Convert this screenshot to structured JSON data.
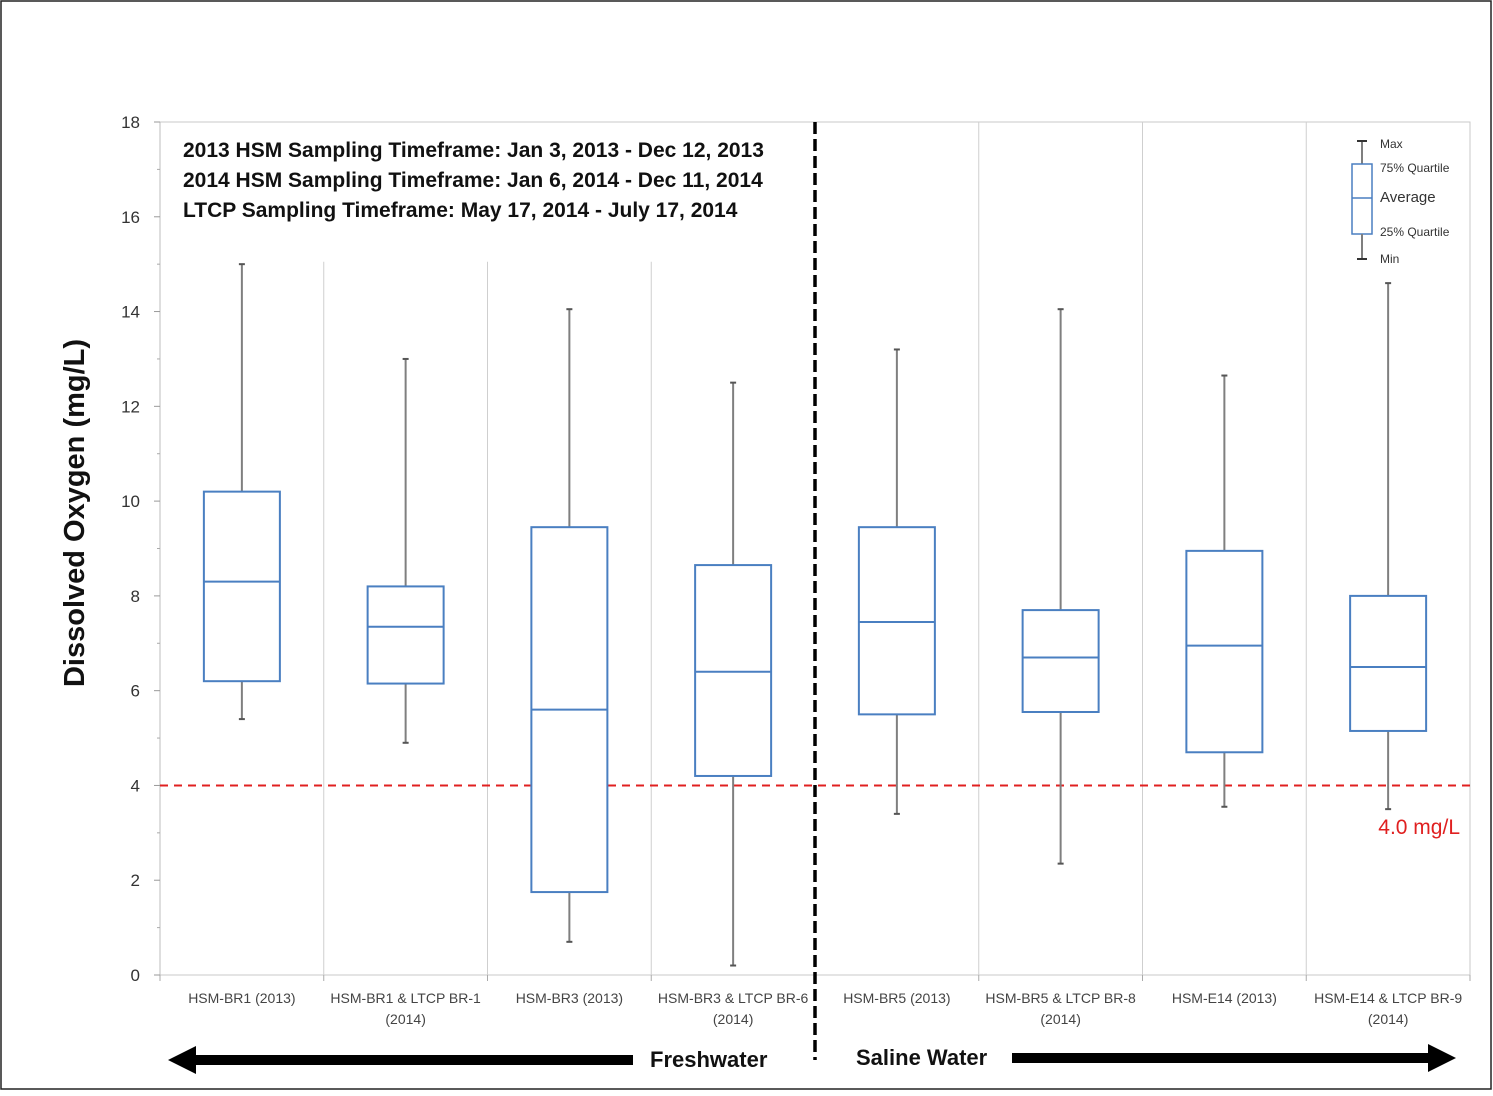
{
  "chart_data": {
    "type": "box",
    "ylabel": "Dissolved Oxygen (mg/L)",
    "ylim": [
      0,
      18
    ],
    "yticks": [
      0,
      2,
      4,
      6,
      8,
      10,
      12,
      14,
      16,
      18
    ],
    "categories": [
      {
        "line1": "HSM-BR1 (2013)",
        "line2": ""
      },
      {
        "line1": "HSM-BR1 & LTCP BR-1",
        "line2": "(2014)"
      },
      {
        "line1": "HSM-BR3 (2013)",
        "line2": ""
      },
      {
        "line1": "HSM-BR3 & LTCP BR-6",
        "line2": "(2014)"
      },
      {
        "line1": "HSM-BR5 (2013)",
        "line2": ""
      },
      {
        "line1": "HSM-BR5 & LTCP BR-8",
        "line2": "(2014)"
      },
      {
        "line1": "HSM-E14 (2013)",
        "line2": ""
      },
      {
        "line1": "HSM-E14 & LTCP BR-9",
        "line2": "(2014)"
      }
    ],
    "boxes": [
      {
        "min": 5.4,
        "q1": 6.2,
        "avg": 8.3,
        "q3": 10.2,
        "max": 15.0
      },
      {
        "min": 4.9,
        "q1": 6.15,
        "avg": 7.35,
        "q3": 8.2,
        "max": 13.0
      },
      {
        "min": 0.7,
        "q1": 1.75,
        "avg": 5.6,
        "q3": 9.45,
        "max": 14.05
      },
      {
        "min": 0.2,
        "q1": 4.2,
        "avg": 6.4,
        "q3": 8.65,
        "max": 12.5
      },
      {
        "min": 3.4,
        "q1": 5.5,
        "avg": 7.45,
        "q3": 9.45,
        "max": 13.2
      },
      {
        "min": 2.35,
        "q1": 5.55,
        "avg": 6.7,
        "q3": 7.7,
        "max": 14.05
      },
      {
        "min": 3.55,
        "q1": 4.7,
        "avg": 6.95,
        "q3": 8.95,
        "max": 12.65
      },
      {
        "min": 3.5,
        "q1": 5.15,
        "avg": 6.5,
        "q3": 8.0,
        "max": 14.6
      }
    ],
    "threshold": {
      "value": 4.0,
      "label": "4.0 mg/L",
      "color": "#e02020"
    },
    "divider_after_index": 3,
    "grid": false,
    "box_color": "#4a7fc1",
    "whisker_color": "#7f7f7f",
    "annotations": [
      "2013 HSM Sampling Timeframe: Jan 3, 2013 - Dec 12, 2013",
      "2014 HSM Sampling Timeframe: Jan 6, 2014 - Dec 11, 2014",
      "LTCP Sampling Timeframe: May 17, 2014 - July 17, 2014"
    ],
    "legend": {
      "position": "top-right",
      "max": "Max",
      "q3": "75% Quartile",
      "avg": "Average",
      "q1": "25% Quartile",
      "min": "Min"
    },
    "regions": {
      "left": "Freshwater",
      "right": "Saline Water"
    }
  }
}
